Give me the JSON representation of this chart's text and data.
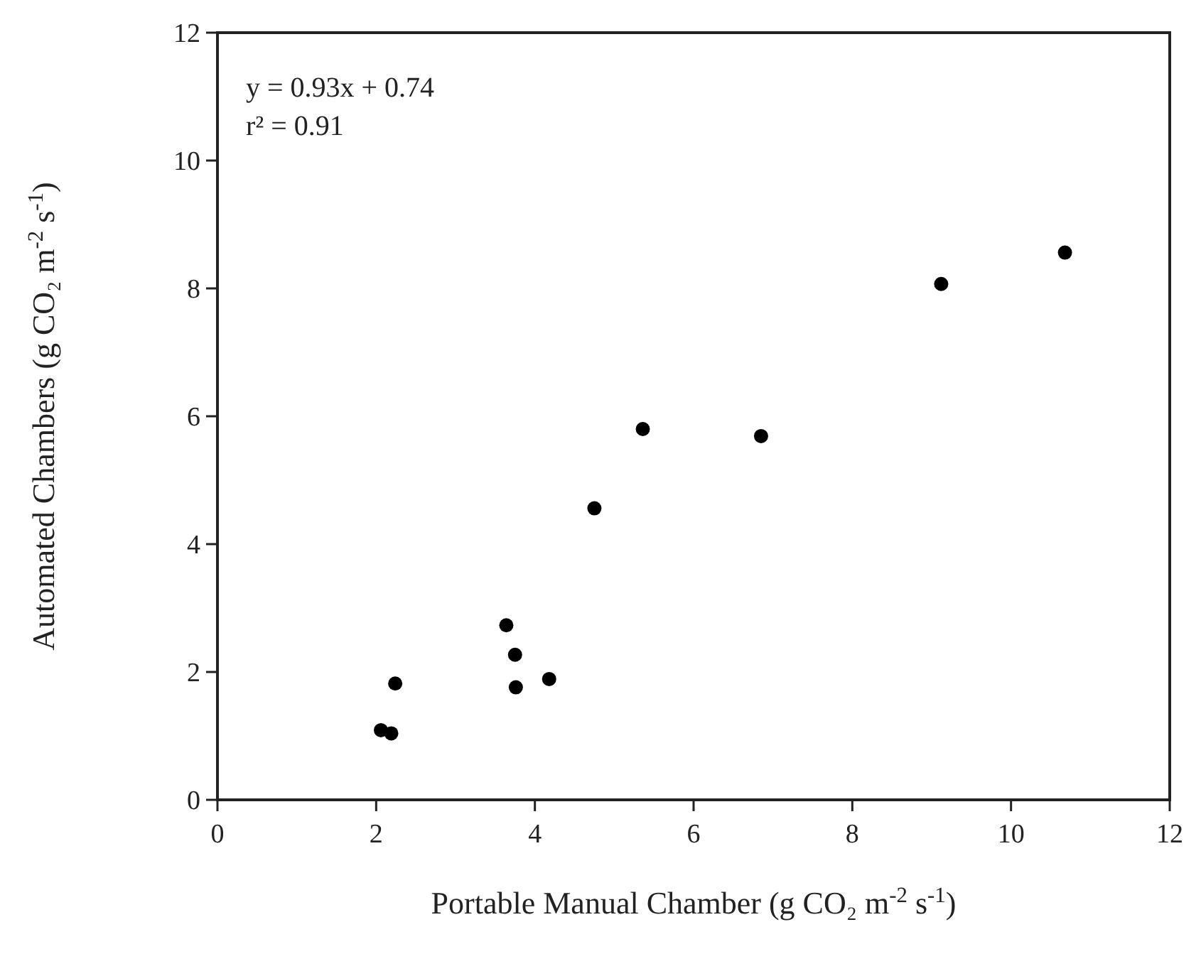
{
  "chart_data": {
    "type": "scatter",
    "xlabel": "Portable Manual Chamber (g CO₂ m$^{-2}$ s$^{-1}$)",
    "ylabel": "Automated Chambers (g CO₂ m$^{-2}$ s$^{-1}$)",
    "annotations": [
      "y = 0.93x + 0.74",
      "r² = 0.91"
    ],
    "x": [
      2.06,
      2.19,
      2.24,
      3.64,
      3.75,
      3.76,
      4.18,
      4.75,
      5.36,
      6.85,
      9.12,
      10.68
    ],
    "series": [
      {
        "color": "#000000",
        "values": [
          1.09,
          1.04,
          1.82,
          2.73,
          2.27,
          1.76,
          1.89,
          4.56,
          5.8,
          5.69,
          8.07,
          8.56
        ]
      }
    ],
    "xlim": [
      0,
      12
    ],
    "ylim": [
      0,
      12
    ],
    "xticks": [
      0,
      2,
      4,
      6,
      8,
      10,
      12
    ],
    "yticks": [
      0,
      2,
      4,
      6,
      8,
      10,
      12
    ],
    "marker": "circle",
    "grid": false
  }
}
